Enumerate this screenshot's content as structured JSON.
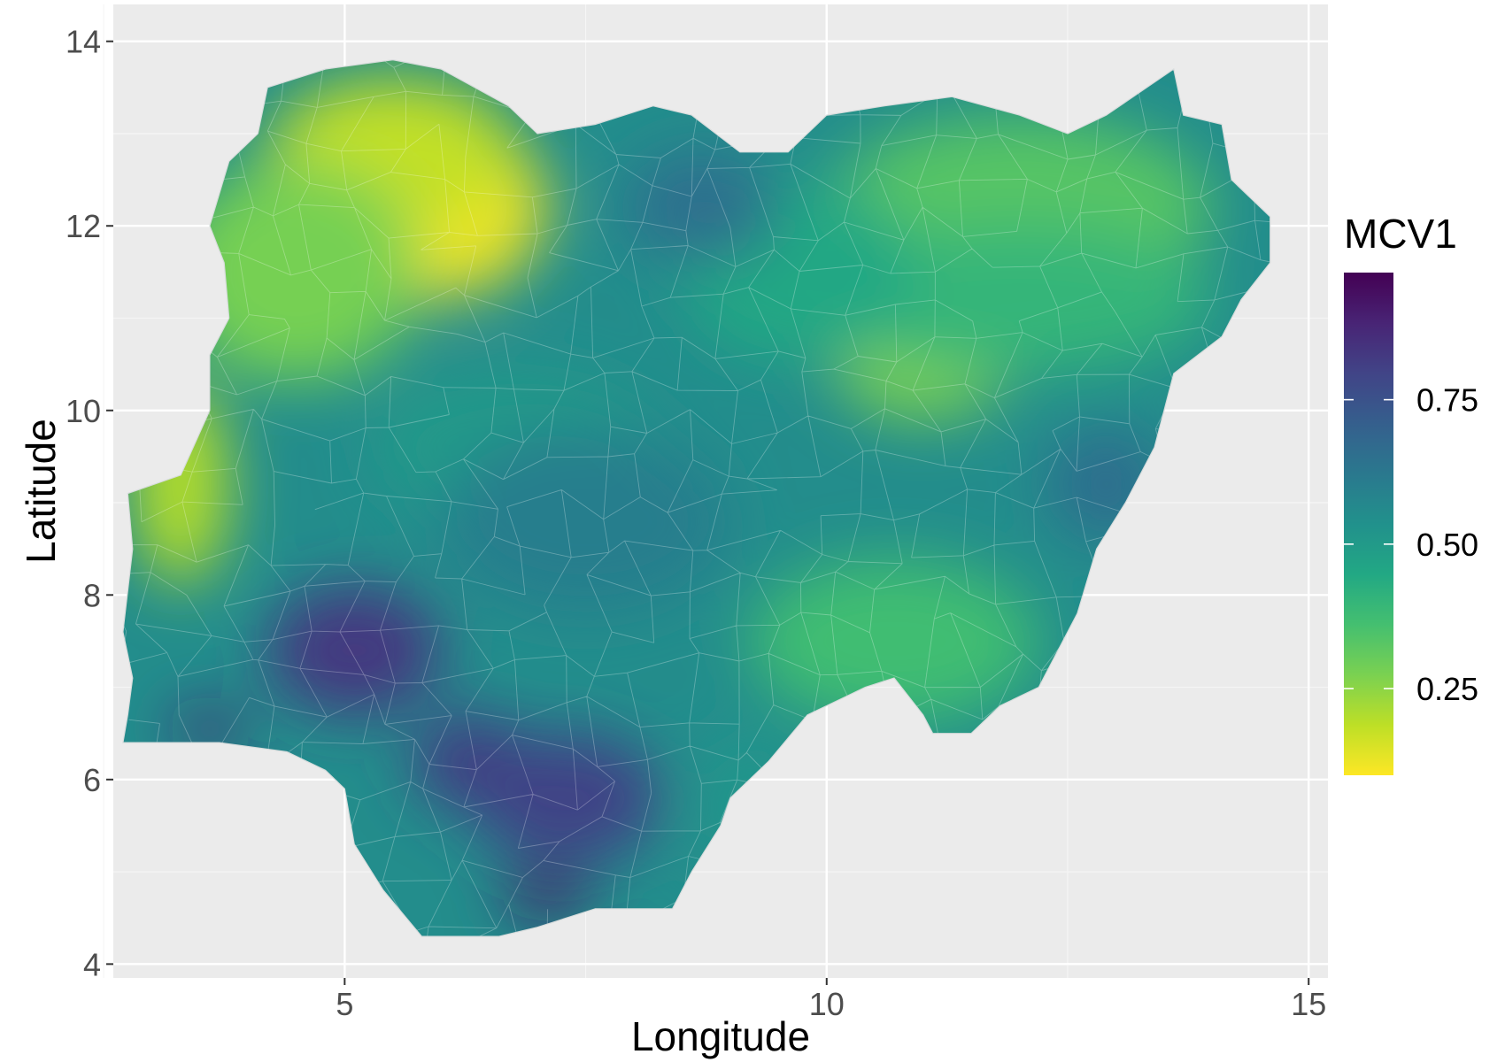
{
  "chart_data": {
    "type": "heatmap",
    "subtype": "choropleth",
    "xlabel": "Longitude",
    "ylabel": "Latitude",
    "xlim": [
      2.6,
      15.2
    ],
    "ylim": [
      3.85,
      14.4
    ],
    "x_ticks": [
      5,
      10,
      15
    ],
    "y_ticks": [
      4,
      6,
      8,
      10,
      12,
      14
    ],
    "x_tick_labels": [
      "5",
      "10",
      "15"
    ],
    "y_tick_labels": [
      "4",
      "6",
      "8",
      "10",
      "12",
      "14"
    ],
    "grid": true,
    "panel_background": "#ebebeb",
    "legend": {
      "title": "MCV1",
      "placement": "right",
      "range": [
        0.1,
        0.97
      ],
      "breaks": [
        0.25,
        0.5,
        0.75
      ],
      "break_labels": [
        "0.25",
        "0.50",
        "0.75"
      ],
      "palette": "viridis-reversed",
      "low_color": "#fde725",
      "high_color": "#440154"
    },
    "outline": [
      [
        2.7,
        6.4
      ],
      [
        2.75,
        6.7
      ],
      [
        2.8,
        7.1
      ],
      [
        2.7,
        7.6
      ],
      [
        2.8,
        8.5
      ],
      [
        2.75,
        9.1
      ],
      [
        3.3,
        9.3
      ],
      [
        3.6,
        10.0
      ],
      [
        3.6,
        10.6
      ],
      [
        3.8,
        11.0
      ],
      [
        3.75,
        11.6
      ],
      [
        3.6,
        12.0
      ],
      [
        3.8,
        12.7
      ],
      [
        4.1,
        13.0
      ],
      [
        4.2,
        13.5
      ],
      [
        4.8,
        13.7
      ],
      [
        5.5,
        13.8
      ],
      [
        6.0,
        13.7
      ],
      [
        6.7,
        13.3
      ],
      [
        7.0,
        13.0
      ],
      [
        7.6,
        13.1
      ],
      [
        8.2,
        13.3
      ],
      [
        8.6,
        13.2
      ],
      [
        9.1,
        12.8
      ],
      [
        9.6,
        12.8
      ],
      [
        10.0,
        13.2
      ],
      [
        10.6,
        13.3
      ],
      [
        11.3,
        13.4
      ],
      [
        12.0,
        13.2
      ],
      [
        12.5,
        13.0
      ],
      [
        12.9,
        13.2
      ],
      [
        13.6,
        13.7
      ],
      [
        13.7,
        13.2
      ],
      [
        14.1,
        13.1
      ],
      [
        14.2,
        12.5
      ],
      [
        14.6,
        12.1
      ],
      [
        14.6,
        11.6
      ],
      [
        14.3,
        11.2
      ],
      [
        14.1,
        10.8
      ],
      [
        13.6,
        10.4
      ],
      [
        13.4,
        9.6
      ],
      [
        13.1,
        9.0
      ],
      [
        12.8,
        8.5
      ],
      [
        12.6,
        7.8
      ],
      [
        12.2,
        7.0
      ],
      [
        11.8,
        6.8
      ],
      [
        11.5,
        6.5
      ],
      [
        11.1,
        6.5
      ],
      [
        11.0,
        6.7
      ],
      [
        10.7,
        7.1
      ],
      [
        10.4,
        7.0
      ],
      [
        10.2,
        6.9
      ],
      [
        9.8,
        6.7
      ],
      [
        9.4,
        6.2
      ],
      [
        9.0,
        5.8
      ],
      [
        8.9,
        5.5
      ],
      [
        8.6,
        5.0
      ],
      [
        8.4,
        4.6
      ],
      [
        7.6,
        4.6
      ],
      [
        7.0,
        4.4
      ],
      [
        6.6,
        4.3
      ],
      [
        6.0,
        4.3
      ],
      [
        5.8,
        4.3
      ],
      [
        5.4,
        4.8
      ],
      [
        5.1,
        5.3
      ],
      [
        5.0,
        5.9
      ],
      [
        4.8,
        6.1
      ],
      [
        4.4,
        6.3
      ],
      [
        3.7,
        6.4
      ],
      [
        2.7,
        6.4
      ]
    ],
    "hotspots": [
      {
        "x": 5.9,
        "y": 12.2,
        "rx": 1.2,
        "ry": 1.0,
        "value": 0.12
      },
      {
        "x": 5.5,
        "y": 12.8,
        "rx": 1.3,
        "ry": 0.8,
        "value": 0.18
      },
      {
        "x": 3.3,
        "y": 9.2,
        "rx": 0.5,
        "ry": 1.1,
        "value": 0.2
      },
      {
        "x": 4.5,
        "y": 11.5,
        "rx": 1.3,
        "ry": 1.2,
        "value": 0.28
      },
      {
        "x": 11.0,
        "y": 10.5,
        "rx": 0.9,
        "ry": 0.6,
        "value": 0.27
      },
      {
        "x": 12.0,
        "y": 12.2,
        "rx": 2.0,
        "ry": 1.0,
        "value": 0.33
      },
      {
        "x": 10.7,
        "y": 7.5,
        "rx": 1.5,
        "ry": 0.9,
        "value": 0.37
      },
      {
        "x": 12.0,
        "y": 11.2,
        "rx": 2.0,
        "ry": 0.8,
        "value": 0.4
      },
      {
        "x": 9.7,
        "y": 11.5,
        "rx": 1.2,
        "ry": 1.0,
        "value": 0.45
      },
      {
        "x": 8.7,
        "y": 12.2,
        "rx": 0.8,
        "ry": 0.6,
        "value": 0.65
      },
      {
        "x": 6.8,
        "y": 9.6,
        "rx": 1.5,
        "ry": 0.8,
        "value": 0.5
      },
      {
        "x": 7.5,
        "y": 8.8,
        "rx": 1.5,
        "ry": 1.0,
        "value": 0.6
      },
      {
        "x": 12.9,
        "y": 9.2,
        "rx": 0.6,
        "ry": 0.6,
        "value": 0.66
      },
      {
        "x": 5.1,
        "y": 7.4,
        "rx": 0.9,
        "ry": 0.7,
        "value": 0.83
      },
      {
        "x": 3.6,
        "y": 6.55,
        "rx": 0.4,
        "ry": 0.18,
        "value": 0.9
      },
      {
        "x": 6.3,
        "y": 6.2,
        "rx": 0.6,
        "ry": 0.5,
        "value": 0.82
      },
      {
        "x": 7.3,
        "y": 5.8,
        "rx": 1.0,
        "ry": 0.7,
        "value": 0.8
      },
      {
        "x": 7.1,
        "y": 4.75,
        "rx": 0.45,
        "ry": 0.22,
        "value": 0.93
      },
      {
        "x": 9.2,
        "y": 5.7,
        "rx": 0.6,
        "ry": 0.8,
        "value": 0.52
      }
    ]
  }
}
